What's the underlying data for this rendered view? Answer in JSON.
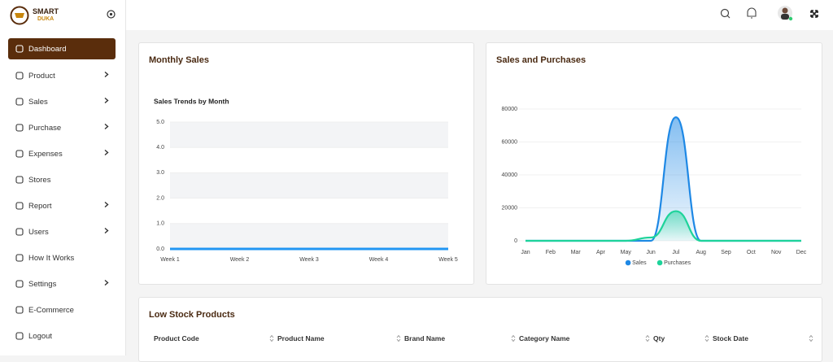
{
  "sidebar": {
    "brand": {
      "line1": "SMART",
      "line2": "DUKA"
    },
    "menu": [
      {
        "label": "Dashboard",
        "active": true
      },
      {
        "label": "Product",
        "submenu": true
      },
      {
        "label": "Sales",
        "submenu": true
      },
      {
        "label": "Purchase",
        "submenu": true
      },
      {
        "label": "Expenses",
        "submenu": true
      },
      {
        "label": "Stores"
      },
      {
        "label": "Report",
        "submenu": true
      },
      {
        "label": "Users",
        "submenu": true
      },
      {
        "label": "How It Works"
      },
      {
        "label": "Settings",
        "submenu": true
      },
      {
        "label": "E-Commerce"
      },
      {
        "label": "Logout"
      }
    ]
  },
  "panels": [
    "Monthly Sales",
    "Sales and Purchases"
  ],
  "chart_data": [
    {
      "type": "line",
      "title": "Sales Trends by Month",
      "categories": [
        "Week 1",
        "Week 2",
        "Week 3",
        "Week 4",
        "Week 5"
      ],
      "values": [
        0,
        0,
        0,
        0,
        0
      ],
      "color": "#2196f3",
      "ylim": [
        0,
        5
      ],
      "yticks": [
        {
          "value": 0,
          "label": "0.0"
        },
        {
          "value": 1,
          "label": "1.0"
        },
        {
          "value": 2,
          "label": "2.0"
        },
        {
          "value": 3,
          "label": "3.0"
        },
        {
          "value": 4,
          "label": "4.0"
        },
        {
          "value": 5,
          "label": "5.0"
        }
      ],
      "grid": "striped"
    },
    {
      "type": "area",
      "categories": [
        "Jan",
        "Feb",
        "Mar",
        "Apr",
        "May",
        "Jun",
        "Jul",
        "Aug",
        "Sep",
        "Oct",
        "Nov",
        "Dec"
      ],
      "series": [
        {
          "name": "Sales",
          "color": "#1e88e5",
          "values": [
            0,
            0,
            0,
            0,
            0,
            0,
            75000,
            0,
            0,
            0,
            0,
            0
          ]
        },
        {
          "name": "Purchases",
          "color": "#1ed39a",
          "values": [
            0,
            0,
            0,
            0,
            0,
            2000,
            18000,
            0,
            0,
            0,
            0,
            0
          ]
        }
      ],
      "ylim": [
        0,
        80000
      ],
      "yticks": [
        0,
        20000,
        40000,
        60000,
        80000
      ],
      "grid": true,
      "legend": "bottom"
    }
  ],
  "table": {
    "title": "Low Stock Products",
    "columns": [
      "Product Code",
      "Product Name",
      "Brand Name",
      "Category Name",
      "Qty",
      "Stock Date"
    ]
  }
}
